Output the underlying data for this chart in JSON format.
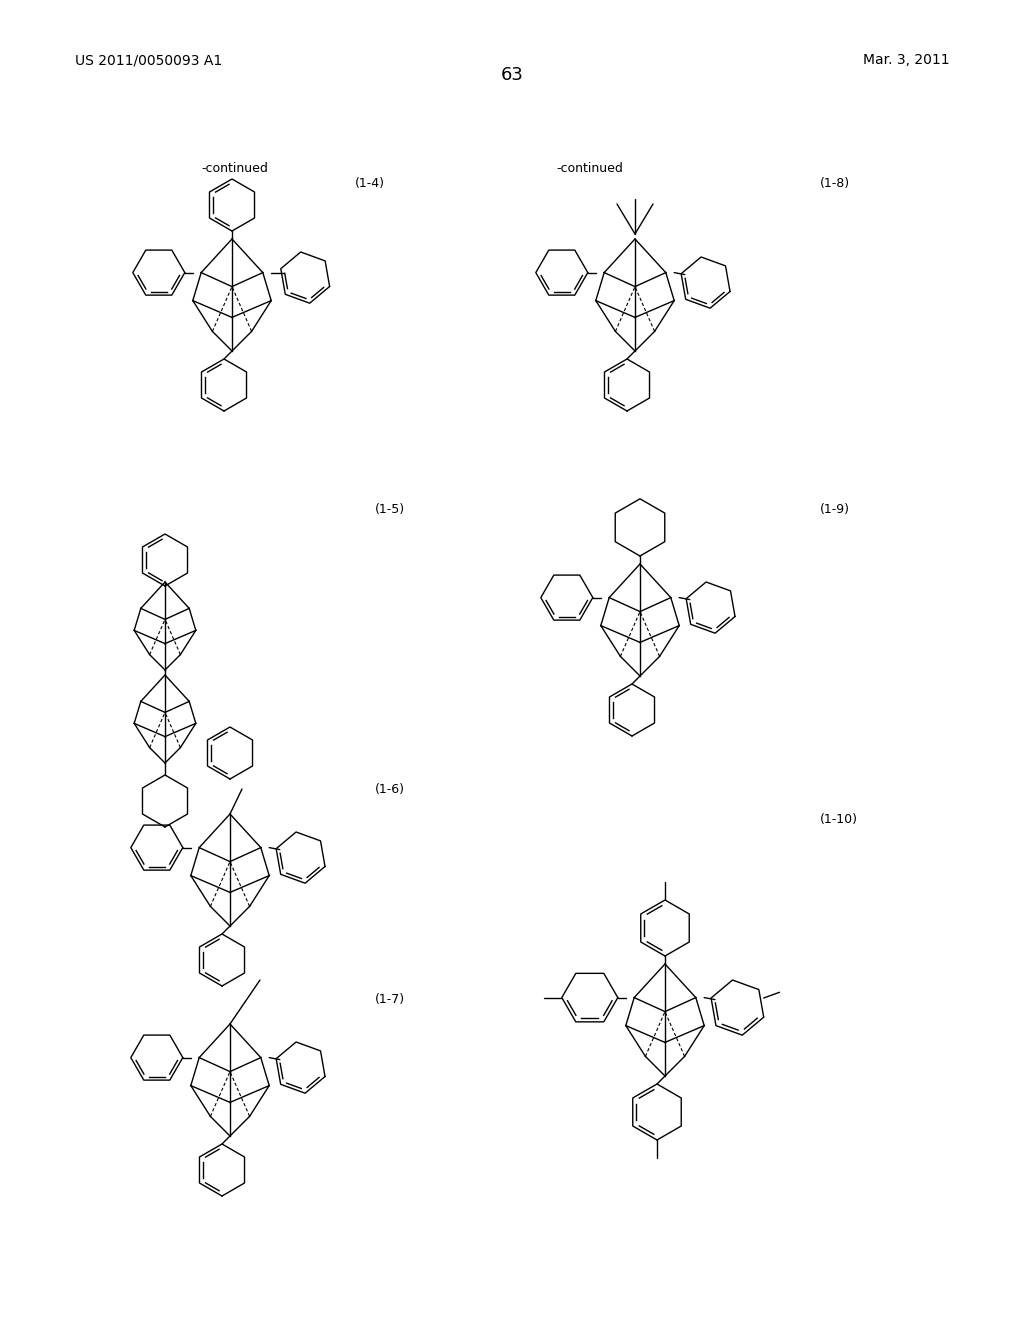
{
  "background_color": "#ffffff",
  "page_number": "63",
  "patent_left": "US 2011/0050093 A1",
  "patent_right": "Mar. 3, 2011",
  "fig_width": 10.24,
  "fig_height": 13.2,
  "dpi": 100
}
